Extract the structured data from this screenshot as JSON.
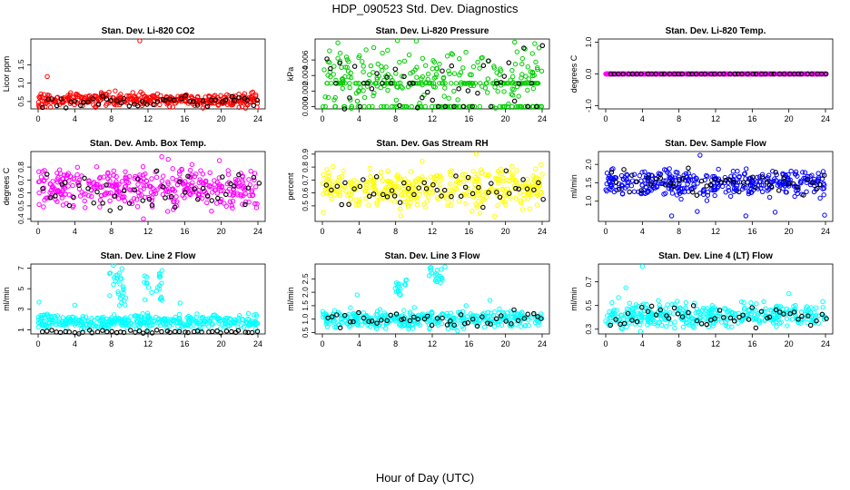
{
  "figure_title": "HDP_090523  Std. Dev. Diagnostics",
  "xlabel": "Hour of Day (UTC)",
  "chart_data": [
    {
      "type": "scatter",
      "title": "Stan. Dev. Li-820 CO2",
      "ylabel": "Licor ppm",
      "color": "#ff0000",
      "xlim": [
        0,
        24
      ],
      "xticks": [
        "0",
        "4",
        "8",
        "12",
        "16",
        "20",
        "24"
      ],
      "ylim": [
        0.3,
        2.2
      ],
      "yticks": [
        {
          "v": 0.5,
          "label": "0.5"
        },
        {
          "v": 1.0,
          "label": "1.0"
        },
        {
          "v": 1.5,
          "label": "1.5"
        }
      ],
      "base": 0.55,
      "spread": 0.09,
      "black_base": 0.5,
      "black_spread": 0.08,
      "outliers": [
        [
          11.1,
          2.15
        ],
        [
          1.0,
          1.18
        ],
        [
          0.2,
          0.35
        ],
        [
          23.9,
          0.35
        ]
      ]
    },
    {
      "type": "scatter",
      "title": "Stan. Dev. Li-820 Pressure",
      "ylabel": "kPa",
      "color": "#00cc00",
      "xlim": [
        0,
        24
      ],
      "xticks": [
        "0",
        "4",
        "8",
        "12",
        "16",
        "20",
        "24"
      ],
      "ylim": [
        -0.0003,
        0.0087
      ],
      "yticks": [
        {
          "v": 0.0,
          "label": "0.000"
        },
        {
          "v": 0.002,
          "label": "0.002"
        },
        {
          "v": 0.004,
          "label": "0.004"
        },
        {
          "v": 0.006,
          "label": "0.006"
        }
      ],
      "levels": [
        0.0,
        0.003
      ],
      "level_extra": [
        0.0035,
        0.0045,
        0.006
      ],
      "base": 0.004,
      "spread": 0.0018,
      "black_base": 0.0035,
      "black_spread": 0.002,
      "outliers": [
        [
          8.2,
          0.0085
        ],
        [
          21.0,
          0.0083
        ]
      ]
    },
    {
      "type": "scatter",
      "title": "Stan. Dev. Li-820 Temp.",
      "ylabel": "degrees C",
      "color": "#ff00ff",
      "xlim": [
        0,
        24
      ],
      "xticks": [
        "0",
        "4",
        "8",
        "12",
        "16",
        "20",
        "24"
      ],
      "ylim": [
        -1.1,
        1.1
      ],
      "yticks": [
        {
          "v": -1.0,
          "label": "-1.0"
        },
        {
          "v": 0.0,
          "label": "0.0"
        },
        {
          "v": 1.0,
          "label": "1.0"
        }
      ],
      "flat": 0.0,
      "base": 0.0,
      "spread": 0.0,
      "black_base": 0.0,
      "black_spread": 0.0,
      "outliers": []
    },
    {
      "type": "scatter",
      "title": "Stan. Dev. Amb. Box Temp.",
      "ylabel": "degrees C",
      "color": "#ff00ff",
      "xlim": [
        0,
        24
      ],
      "xticks": [
        "0",
        "4",
        "8",
        "12",
        "16",
        "20",
        "24"
      ],
      "ylim": [
        0.38,
        0.92
      ],
      "yticks": [
        {
          "v": 0.4,
          "label": "0.4"
        },
        {
          "v": 0.5,
          "label": "0.5"
        },
        {
          "v": 0.6,
          "label": "0.6"
        },
        {
          "v": 0.7,
          "label": "0.7"
        },
        {
          "v": 0.8,
          "label": "0.8"
        }
      ],
      "base": 0.64,
      "spread": 0.07,
      "black_base": 0.63,
      "black_spread": 0.07,
      "outliers": [
        [
          11.5,
          0.4
        ],
        [
          13.5,
          0.88
        ],
        [
          14.2,
          0.86
        ],
        [
          19.8,
          0.85
        ],
        [
          16.8,
          0.82
        ]
      ]
    },
    {
      "type": "scatter",
      "title": "Stan. Dev. Gas Stream RH",
      "ylabel": "percent",
      "color": "#ffff00",
      "xlim": [
        0,
        24
      ],
      "xticks": [
        "0",
        "4",
        "8",
        "12",
        "16",
        "20",
        "24"
      ],
      "ylim": [
        0.38,
        0.92
      ],
      "yticks": [
        {
          "v": 0.5,
          "label": "0.5"
        },
        {
          "v": 0.6,
          "label": "0.6"
        },
        {
          "v": 0.7,
          "label": "0.7"
        },
        {
          "v": 0.8,
          "label": "0.8"
        },
        {
          "v": 0.9,
          "label": "0.9"
        }
      ],
      "base": 0.64,
      "spread": 0.075,
      "black_base": 0.63,
      "black_spread": 0.07,
      "outliers": [
        [
          0.1,
          0.45
        ],
        [
          16.8,
          0.9
        ],
        [
          18.8,
          0.42
        ],
        [
          23.9,
          0.82
        ]
      ]
    },
    {
      "type": "scatter",
      "title": "Stan. Dev. Sample Flow",
      "ylabel": "ml/min",
      "color": "#0000ff",
      "xlim": [
        0,
        24
      ],
      "xticks": [
        "0",
        "4",
        "8",
        "12",
        "16",
        "20",
        "24"
      ],
      "ylim": [
        0.45,
        2.35
      ],
      "yticks": [
        {
          "v": 1.0,
          "label": "1.0"
        },
        {
          "v": 1.5,
          "label": "1.5"
        },
        {
          "v": 2.0,
          "label": "2.0"
        }
      ],
      "base": 1.5,
      "spread": 0.18,
      "black_base": 1.5,
      "black_spread": 0.17,
      "outliers": [
        [
          10.3,
          2.25
        ],
        [
          7.2,
          0.6
        ],
        [
          15.3,
          0.6
        ],
        [
          23.9,
          0.62
        ],
        [
          18.5,
          0.7
        ],
        [
          10.0,
          0.72
        ]
      ]
    },
    {
      "type": "scatter",
      "title": "Stan. Dev. Line 2 Flow",
      "ylabel": "ml/min",
      "color": "#00ffff",
      "xlim": [
        0,
        24
      ],
      "xticks": [
        "0",
        "4",
        "8",
        "12",
        "16",
        "20",
        "24"
      ],
      "ylim": [
        0.6,
        7.4
      ],
      "yticks": [
        {
          "v": 1,
          "label": "1"
        },
        {
          "v": 3,
          "label": "3"
        },
        {
          "v": 5,
          "label": "5"
        },
        {
          "v": 7,
          "label": "7"
        }
      ],
      "base": 1.8,
      "spread": 0.35,
      "black_base": 0.8,
      "black_spread": 0.08,
      "clusters": [
        {
          "x0": 7.8,
          "x1": 9.6,
          "y0": 3.3,
          "y1": 7.3,
          "n": 28
        },
        {
          "x0": 11.6,
          "x1": 13.6,
          "y0": 3.8,
          "y1": 6.8,
          "n": 22
        }
      ],
      "outliers": [
        [
          0.1,
          3.7
        ],
        [
          15.5,
          3.6
        ],
        [
          4.0,
          3.4
        ]
      ]
    },
    {
      "type": "scatter",
      "title": "Stan. Dev. Line 3 Flow",
      "ylabel": "ml/min",
      "color": "#00ffff",
      "xlim": [
        0,
        24
      ],
      "xticks": [
        "0",
        "4",
        "8",
        "12",
        "16",
        "20",
        "24"
      ],
      "ylim": [
        0.45,
        3.05
      ],
      "yticks": [
        {
          "v": 0.5,
          "label": "0.5"
        },
        {
          "v": 1.0,
          "label": "1.0"
        },
        {
          "v": 1.5,
          "label": "1.5"
        },
        {
          "v": 2.0,
          "label": "2.0"
        },
        {
          "v": 2.5,
          "label": "2.5"
        }
      ],
      "base": 1.0,
      "spread": 0.16,
      "black_base": 1.0,
      "black_spread": 0.14,
      "clusters": [
        {
          "x0": 7.8,
          "x1": 9.2,
          "y0": 1.9,
          "y1": 2.5,
          "n": 16
        },
        {
          "x0": 11.6,
          "x1": 13.4,
          "y0": 2.3,
          "y1": 2.95,
          "n": 20
        }
      ],
      "outliers": [
        [
          3.8,
          1.9
        ],
        [
          15.7,
          1.5
        ],
        [
          18.3,
          1.7
        ]
      ]
    },
    {
      "type": "scatter",
      "title": "Stan. Dev. Line 4 (LT) Flow",
      "ylabel": "ml/min",
      "color": "#00ffff",
      "xlim": [
        0,
        24
      ],
      "xticks": [
        "0",
        "4",
        "8",
        "12",
        "16",
        "20",
        "24"
      ],
      "ylim": [
        0.26,
        0.85
      ],
      "yticks": [
        {
          "v": 0.3,
          "label": "0.3"
        },
        {
          "v": 0.5,
          "label": "0.5"
        },
        {
          "v": 0.7,
          "label": "0.7"
        }
      ],
      "base": 0.42,
      "spread": 0.05,
      "black_base": 0.41,
      "black_spread": 0.05,
      "outliers": [
        [
          4.0,
          0.83
        ],
        [
          2.2,
          0.65
        ],
        [
          20.0,
          0.6
        ]
      ]
    }
  ]
}
